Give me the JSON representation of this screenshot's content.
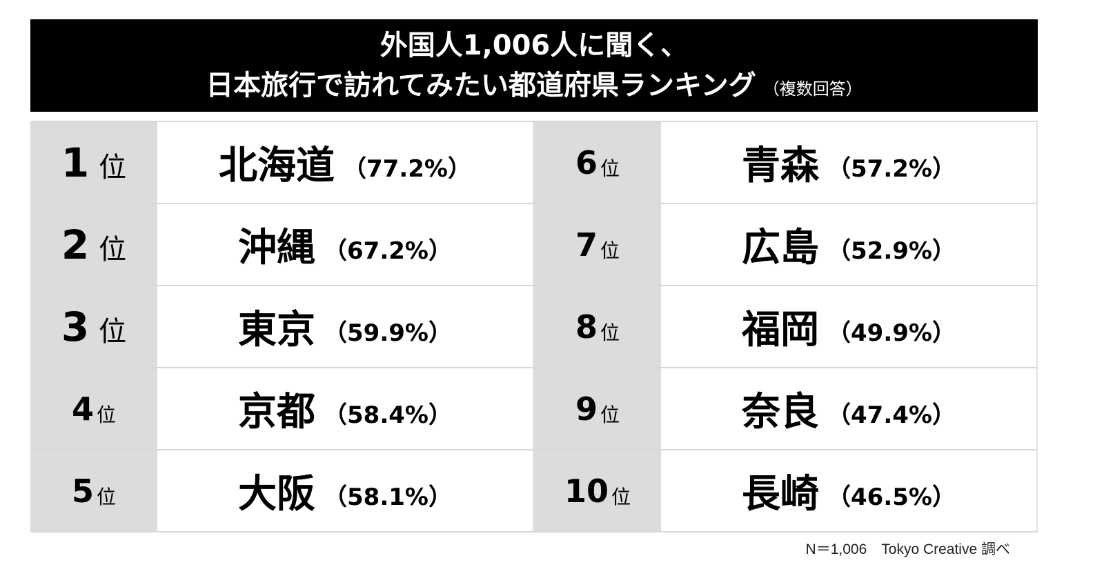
{
  "header": {
    "title_line1": "外国人1,006人に聞く、",
    "title_line2": "日本旅行で訪れてみたい都道府県ランキング",
    "subtitle": "（複数回答）"
  },
  "rank_suffix": "位",
  "chart_data": {
    "type": "table",
    "title": "外国人1,006人に聞く、日本旅行で訪れてみたい都道府県ランキング（複数回答）",
    "rows": [
      {
        "rank": "1",
        "prefecture": "北海道",
        "percent": "（77.2%）",
        "value": 77.2
      },
      {
        "rank": "2",
        "prefecture": "沖縄",
        "percent": "（67.2%）",
        "value": 67.2
      },
      {
        "rank": "3",
        "prefecture": "東京",
        "percent": "（59.9%）",
        "value": 59.9
      },
      {
        "rank": "4",
        "prefecture": "京都",
        "percent": "（58.4%）",
        "value": 58.4
      },
      {
        "rank": "5",
        "prefecture": "大阪",
        "percent": "（58.1%）",
        "value": 58.1
      },
      {
        "rank": "6",
        "prefecture": "青森",
        "percent": "（57.2%）",
        "value": 57.2
      },
      {
        "rank": "7",
        "prefecture": "広島",
        "percent": "（52.9%）",
        "value": 52.9
      },
      {
        "rank": "8",
        "prefecture": "福岡",
        "percent": "（49.9%）",
        "value": 49.9
      },
      {
        "rank": "9",
        "prefecture": "奈良",
        "percent": "（47.4%）",
        "value": 47.4
      },
      {
        "rank": "10",
        "prefecture": "長崎",
        "percent": "（46.5%）",
        "value": 46.5
      }
    ]
  },
  "footer": {
    "note": "N＝1,006　Tokyo Creative 調べ"
  },
  "colors": {
    "header_bg": "#000000",
    "rank_cell_bg": "#dcdcdc",
    "name_cell_bg": "#ffffff"
  }
}
